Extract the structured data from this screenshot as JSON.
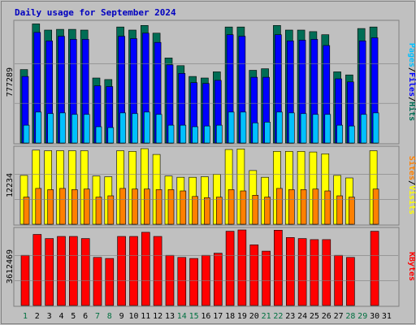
{
  "title": "Daily usage for September 2024",
  "colors": {
    "background": "#C0C0C0",
    "hits": "#006D55",
    "files": "#0000FF",
    "pages": "#00C0FF",
    "visits": "#FFFF00",
    "sites": "#FF8000",
    "kbytes": "#FF0000",
    "title_text": "#0000C0",
    "day_weekday": "#000000",
    "day_weekend": "#007040"
  },
  "panels": {
    "hits": {
      "max_label": "777289",
      "legend": {
        "pages": "Pages",
        "files": "Files",
        "hits": "Hits",
        "sep": "/"
      }
    },
    "visits": {
      "max_label": "12234",
      "legend": {
        "sites": "Sites",
        "visits": "Visits",
        "sep": "/"
      }
    },
    "kbytes": {
      "max_label": "3612469",
      "legend": {
        "kbytes": "KBytes"
      }
    }
  },
  "chart_data": [
    {
      "type": "bar",
      "title": "Daily usage for September 2024",
      "ylabel": "777289",
      "categories": [
        "1",
        "2",
        "3",
        "4",
        "5",
        "6",
        "7",
        "8",
        "9",
        "10",
        "11",
        "12",
        "13",
        "14",
        "15",
        "16",
        "17",
        "18",
        "19",
        "20",
        "21",
        "22",
        "23",
        "24",
        "25",
        "26",
        "27",
        "28",
        "29",
        "30",
        "31"
      ],
      "weekend_days": [
        "1",
        "7",
        "8",
        "14",
        "15",
        "21",
        "22",
        "28",
        "29"
      ],
      "ylim": [
        0,
        777289
      ],
      "series": [
        {
          "name": "Hits",
          "values": [
            475000,
            770000,
            730000,
            735000,
            735000,
            730000,
            420000,
            410000,
            750000,
            730000,
            760000,
            710000,
            550000,
            500000,
            430000,
            420000,
            460000,
            750000,
            750000,
            470000,
            480000,
            760000,
            730000,
            730000,
            720000,
            700000,
            460000,
            440000,
            740000,
            750000,
            0
          ]
        },
        {
          "name": "Files",
          "values": [
            430000,
            715000,
            660000,
            690000,
            670000,
            670000,
            370000,
            365000,
            690000,
            675000,
            710000,
            650000,
            505000,
            450000,
            390000,
            385000,
            405000,
            700000,
            690000,
            425000,
            425000,
            700000,
            660000,
            665000,
            670000,
            630000,
            415000,
            395000,
            660000,
            680000,
            0
          ]
        },
        {
          "name": "Pages",
          "values": [
            115000,
            200000,
            190000,
            195000,
            185000,
            185000,
            105000,
            100000,
            195000,
            190000,
            200000,
            185000,
            115000,
            115000,
            105000,
            110000,
            115000,
            200000,
            200000,
            130000,
            135000,
            200000,
            195000,
            190000,
            185000,
            185000,
            115000,
            110000,
            185000,
            195000,
            0
          ]
        }
      ]
    },
    {
      "type": "bar",
      "ylabel": "12234",
      "categories": [
        "1",
        "2",
        "3",
        "4",
        "5",
        "6",
        "7",
        "8",
        "9",
        "10",
        "11",
        "12",
        "13",
        "14",
        "15",
        "16",
        "17",
        "18",
        "19",
        "20",
        "21",
        "22",
        "23",
        "24",
        "25",
        "26",
        "27",
        "28",
        "29",
        "30",
        "31"
      ],
      "ylim": [
        0,
        12234
      ],
      "series": [
        {
          "name": "Visits",
          "values": [
            7900,
            12000,
            11900,
            11900,
            11900,
            11900,
            7800,
            7700,
            11900,
            11800,
            12234,
            11300,
            7800,
            7600,
            7600,
            7700,
            8100,
            12100,
            12200,
            8700,
            7600,
            11800,
            11800,
            11800,
            11700,
            11400,
            7900,
            7500,
            0,
            11900,
            0
          ]
        },
        {
          "name": "Sites",
          "values": [
            4400,
            5800,
            5600,
            5800,
            5600,
            5700,
            4400,
            4600,
            5800,
            5700,
            5700,
            5600,
            5600,
            5400,
            4500,
            4300,
            4400,
            5600,
            5400,
            4700,
            4400,
            5800,
            5600,
            5600,
            5700,
            5400,
            4600,
            4400,
            0,
            5700,
            0
          ]
        }
      ]
    },
    {
      "type": "bar",
      "ylabel": "3612469",
      "categories": [
        "1",
        "2",
        "3",
        "4",
        "5",
        "6",
        "7",
        "8",
        "9",
        "10",
        "11",
        "12",
        "13",
        "14",
        "15",
        "16",
        "17",
        "18",
        "19",
        "20",
        "21",
        "22",
        "23",
        "24",
        "25",
        "26",
        "27",
        "28",
        "29",
        "30",
        "31"
      ],
      "ylim": [
        0,
        3612469
      ],
      "series": [
        {
          "name": "KBytes",
          "values": [
            2400000,
            3400000,
            3200000,
            3300000,
            3300000,
            3200000,
            2300000,
            2250000,
            3300000,
            3300000,
            3500000,
            3300000,
            2400000,
            2300000,
            2250000,
            2400000,
            2500000,
            3550000,
            3612469,
            2900000,
            2600000,
            3600000,
            3250000,
            3200000,
            3150000,
            3150000,
            2400000,
            2300000,
            0,
            3550000,
            0
          ]
        }
      ]
    }
  ]
}
